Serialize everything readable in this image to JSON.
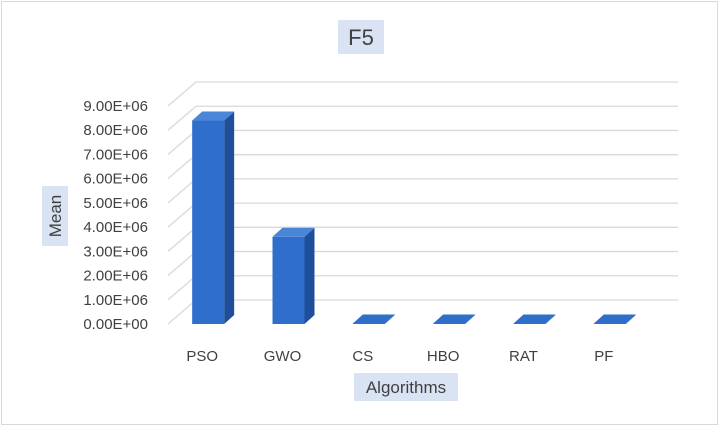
{
  "chart_data": {
    "type": "bar",
    "style": "3d-clustered-column",
    "title": "F5",
    "xlabel": "Algorithms",
    "ylabel": "Mean",
    "categories": [
      "PSO",
      "GWO",
      "CS",
      "HBO",
      "RAT",
      "PF"
    ],
    "values": [
      8400000,
      3600000,
      0,
      0,
      0,
      0
    ],
    "ylim": [
      0,
      9000000
    ],
    "yticks": [
      "0.00E+00",
      "1.00E+06",
      "2.00E+06",
      "3.00E+06",
      "4.00E+06",
      "5.00E+06",
      "6.00E+06",
      "7.00E+06",
      "8.00E+06",
      "9.00E+06"
    ],
    "grid": true,
    "legend": "none",
    "colors": {
      "bar_front": "#2f6fcb",
      "bar_side": "#1f4e9a",
      "bar_top": "#4a86d8",
      "title_bg": "#dae3f3",
      "grid": "#d9d9d9"
    }
  }
}
